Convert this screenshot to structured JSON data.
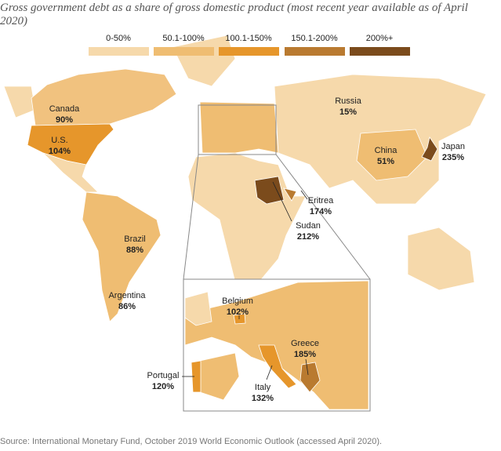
{
  "title": "Gross government debt as a share of gross domestic product (most recent year available as of April 2020)",
  "legend": [
    {
      "label": "0-50%",
      "color": "#f6d9ab"
    },
    {
      "label": "50.1-100%",
      "color": "#efbd72"
    },
    {
      "label": "100.1-150%",
      "color": "#e6962b"
    },
    {
      "label": "150.1-200%",
      "color": "#b97a30"
    },
    {
      "label": "200%+",
      "color": "#7b4b1c"
    }
  ],
  "countries": [
    {
      "name": "Canada",
      "value": "90%"
    },
    {
      "name": "U.S.",
      "value": "104%"
    },
    {
      "name": "Russia",
      "value": "15%"
    },
    {
      "name": "China",
      "value": "51%"
    },
    {
      "name": "Japan",
      "value": "235%"
    },
    {
      "name": "Eritrea",
      "value": "174%"
    },
    {
      "name": "Sudan",
      "value": "212%"
    },
    {
      "name": "Brazil",
      "value": "88%"
    },
    {
      "name": "Argentina",
      "value": "86%"
    },
    {
      "name": "Belgium",
      "value": "102%"
    },
    {
      "name": "Greece",
      "value": "185%"
    },
    {
      "name": "Portugal",
      "value": "120%"
    },
    {
      "name": "Italy",
      "value": "132%"
    }
  ],
  "source": "Source: International Monetary Fund, October 2019 World Economic Outlook (accessed April 2020)."
}
